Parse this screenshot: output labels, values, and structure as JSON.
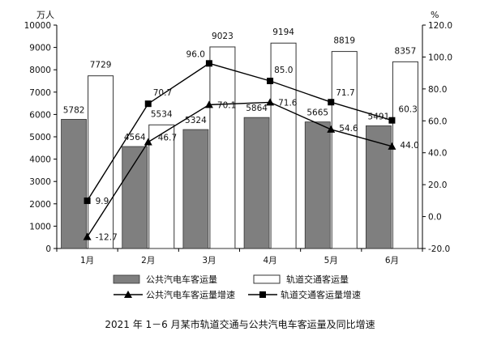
{
  "chart_data": {
    "type": "bar",
    "title": "2021 年 1－6 月某市轨道交通与公共汽电车客运量及同比增速",
    "categories": [
      "1月",
      "2月",
      "3月",
      "4月",
      "5月",
      "6月"
    ],
    "left_axis": {
      "unit": "万人",
      "ylim": [
        0,
        10000
      ],
      "ticks": [
        "0",
        "1000",
        "2000",
        "3000",
        "4000",
        "5000",
        "6000",
        "7000",
        "8000",
        "9000",
        "10000"
      ]
    },
    "right_axis": {
      "unit": "%",
      "ylim": [
        -20,
        120
      ],
      "ticks": [
        "-20.0",
        "0.0",
        "20.0",
        "40.0",
        "60.0",
        "80.0",
        "100.0",
        "120.0"
      ]
    },
    "series": [
      {
        "name": "公共汽电车客运量",
        "kind": "bar",
        "axis": "left",
        "fill": "#7f7f7f",
        "stroke": "#333333",
        "values": [
          5782,
          4564,
          5324,
          5864,
          5665,
          5491
        ],
        "labels": [
          "5782",
          "4564",
          "5324",
          "5864",
          "5665",
          "5491"
        ]
      },
      {
        "name": "轨道交通客运量",
        "kind": "bar",
        "axis": "left",
        "fill": "#ffffff",
        "stroke": "#333333",
        "values": [
          7729,
          5534,
          9023,
          9194,
          8819,
          8357
        ],
        "labels": [
          "7729",
          "5534",
          "9023",
          "9194",
          "8819",
          "8357"
        ]
      },
      {
        "name": "公共汽电车客运量增速",
        "kind": "line",
        "axis": "right",
        "marker": "triangle",
        "color": "#000000",
        "values": [
          -12.7,
          46.7,
          70.1,
          71.6,
          54.6,
          44.0
        ],
        "labels": [
          "-12.7",
          "46.7",
          "70.1",
          "71.6",
          "54.6",
          "44.0"
        ]
      },
      {
        "name": "轨道交通客运量增速",
        "kind": "line",
        "axis": "right",
        "marker": "square",
        "color": "#000000",
        "values": [
          9.9,
          70.7,
          96.0,
          85.0,
          71.7,
          60.3
        ],
        "labels": [
          "9.9",
          "70.7",
          "96.0",
          "85.0",
          "71.7",
          "60.3"
        ]
      }
    ],
    "grid": false,
    "legend_position": "bottom"
  }
}
